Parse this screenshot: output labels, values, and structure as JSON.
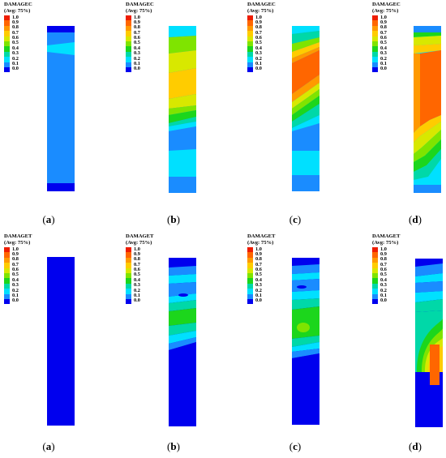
{
  "legend_values": [
    "1.0",
    "0.9",
    "0.8",
    "0.7",
    "0.6",
    "0.5",
    "0.4",
    "0.3",
    "0.2",
    "0.1",
    "0.0"
  ],
  "legend_colors": [
    "#ee1d00",
    "#ff6600",
    "#ff9900",
    "#ffcc00",
    "#d8e800",
    "#7fe400",
    "#1cd61c",
    "#00d8a8",
    "#00e0ff",
    "#1a8cff",
    "#0000ee"
  ],
  "rows": [
    {
      "legend_title_1": "DAMAGEC",
      "legend_title_2": "(Avg: 75%)",
      "panels": [
        {
          "caption_open": "(",
          "caption_letter": "a",
          "caption_close": ")"
        },
        {
          "caption_open": "(",
          "caption_letter": "b",
          "caption_close": ")"
        },
        {
          "caption_open": "(",
          "caption_letter": "c",
          "caption_close": ")"
        },
        {
          "caption_open": "(",
          "caption_letter": "d",
          "caption_close": ")"
        }
      ]
    },
    {
      "legend_title_1": "DAMAGET",
      "legend_title_2": "(Avg: 75%)",
      "panels": [
        {
          "caption_open": "(",
          "caption_letter": "a",
          "caption_close": ")"
        },
        {
          "caption_open": "(",
          "caption_letter": "b",
          "caption_close": ")"
        },
        {
          "caption_open": "(",
          "caption_letter": "c",
          "caption_close": ")"
        },
        {
          "caption_open": "(",
          "caption_letter": "d",
          "caption_close": ")"
        }
      ]
    }
  ]
}
